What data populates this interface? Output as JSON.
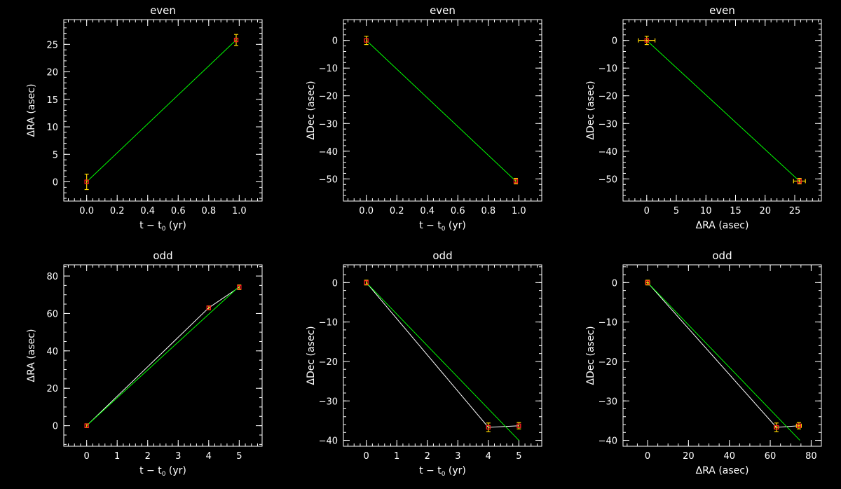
{
  "colors": {
    "background": "#000000",
    "axes": "#ffffff",
    "text": "#ffffff",
    "fit_line": "#00ff00",
    "connect_line": "#ffffff",
    "marker": "#ff2020",
    "errorbar": "#ffd700"
  },
  "chart_data": [
    {
      "type": "scatter",
      "title": "even",
      "xlabel": "t − t",
      "xlabel_sub": "0",
      "xlabel_unit": " (yr)",
      "ylabel": "ΔRA (asec)",
      "xlim": [
        -0.15,
        1.15
      ],
      "ylim": [
        -3.5,
        29.5
      ],
      "xticks": [
        0,
        0.2,
        0.4,
        0.6,
        0.8,
        1.0
      ],
      "xtick_labels": [
        "0.0",
        "0.2",
        "0.4",
        "0.6",
        "0.8",
        "1.0"
      ],
      "yticks": [
        0,
        5,
        10,
        15,
        20,
        25
      ],
      "ytick_labels": [
        "0",
        "5",
        "10",
        "15",
        "20",
        "25"
      ],
      "points": [
        {
          "x": 0,
          "y": 0,
          "yerr": 1.4
        },
        {
          "x": 0.98,
          "y": 25.8,
          "yerr": 1.0
        }
      ],
      "connect": false,
      "fit": [
        [
          0,
          0
        ],
        [
          0.98,
          25.8
        ]
      ]
    },
    {
      "type": "scatter",
      "title": "even",
      "xlabel": "t − t",
      "xlabel_sub": "0",
      "xlabel_unit": " (yr)",
      "ylabel": "ΔDec (asec)",
      "xlim": [
        -0.15,
        1.15
      ],
      "ylim": [
        -58,
        7.5
      ],
      "xticks": [
        0,
        0.2,
        0.4,
        0.6,
        0.8,
        1.0
      ],
      "xtick_labels": [
        "0.0",
        "0.2",
        "0.4",
        "0.6",
        "0.8",
        "1.0"
      ],
      "yticks": [
        0,
        -10,
        -20,
        -30,
        -40,
        -50
      ],
      "ytick_labels": [
        "0",
        "−10",
        "−20",
        "−30",
        "−40",
        "−50"
      ],
      "points": [
        {
          "x": 0,
          "y": 0,
          "yerr": 1.5
        },
        {
          "x": 0.98,
          "y": -50.8,
          "yerr": 1.0
        }
      ],
      "connect": false,
      "fit": [
        [
          0,
          0
        ],
        [
          0.98,
          -50.8
        ]
      ]
    },
    {
      "type": "scatter",
      "title": "even",
      "xlabel": "ΔRA (asec)",
      "xlabel_sub": "",
      "xlabel_unit": "",
      "ylabel": "ΔDec (asec)",
      "xlim": [
        -4,
        29.5
      ],
      "ylim": [
        -58,
        7.5
      ],
      "xticks": [
        0,
        5,
        10,
        15,
        20,
        25
      ],
      "xtick_labels": [
        "0",
        "5",
        "10",
        "15",
        "20",
        "25"
      ],
      "yticks": [
        0,
        -10,
        -20,
        -30,
        -40,
        -50
      ],
      "ytick_labels": [
        "0",
        "−10",
        "−20",
        "−30",
        "−40",
        "−50"
      ],
      "points": [
        {
          "x": 0,
          "y": 0,
          "yerr": 1.5,
          "xerr": 1.4
        },
        {
          "x": 25.8,
          "y": -50.8,
          "yerr": 1.0,
          "xerr": 1.0
        }
      ],
      "connect": false,
      "fit": [
        [
          0,
          0
        ],
        [
          25.8,
          -50.8
        ]
      ]
    },
    {
      "type": "scatter",
      "title": "odd",
      "xlabel": "t − t",
      "xlabel_sub": "0",
      "xlabel_unit": " (yr)",
      "ylabel": "ΔRA (asec)",
      "xlim": [
        -0.75,
        5.75
      ],
      "ylim": [
        -11,
        86
      ],
      "xticks": [
        0,
        1,
        2,
        3,
        4,
        5
      ],
      "xtick_labels": [
        "0",
        "1",
        "2",
        "3",
        "4",
        "5"
      ],
      "yticks": [
        0,
        20,
        40,
        60,
        80
      ],
      "ytick_labels": [
        "0",
        "20",
        "40",
        "60",
        "80"
      ],
      "points": [
        {
          "x": 0,
          "y": 0,
          "yerr": 1.0
        },
        {
          "x": 4,
          "y": 63,
          "yerr": 1.0
        },
        {
          "x": 5,
          "y": 74,
          "yerr": 1.2
        }
      ],
      "connect": true,
      "fit": [
        [
          0,
          0
        ],
        [
          5,
          74.5
        ]
      ]
    },
    {
      "type": "scatter",
      "title": "odd",
      "xlabel": "t − t",
      "xlabel_sub": "0",
      "xlabel_unit": " (yr)",
      "ylabel": "ΔDec (asec)",
      "xlim": [
        -0.75,
        5.75
      ],
      "ylim": [
        -41.5,
        4.5
      ],
      "xticks": [
        0,
        1,
        2,
        3,
        4,
        5
      ],
      "xtick_labels": [
        "0",
        "1",
        "2",
        "3",
        "4",
        "5"
      ],
      "yticks": [
        0,
        -10,
        -20,
        -30,
        -40
      ],
      "ytick_labels": [
        "0",
        "−10",
        "−20",
        "−30",
        "−40"
      ],
      "points": [
        {
          "x": 0,
          "y": 0,
          "yerr": 0.6
        },
        {
          "x": 4,
          "y": -36.7,
          "yerr": 1.1
        },
        {
          "x": 5,
          "y": -36.3,
          "yerr": 0.8
        }
      ],
      "connect": true,
      "fit": [
        [
          0,
          0
        ],
        [
          5,
          -40
        ]
      ]
    },
    {
      "type": "scatter",
      "title": "odd",
      "xlabel": "ΔRA (asec)",
      "xlabel_sub": "",
      "xlabel_unit": "",
      "ylabel": "ΔDec (asec)",
      "xlim": [
        -12,
        85
      ],
      "ylim": [
        -41.5,
        4.5
      ],
      "xticks": [
        0,
        20,
        40,
        60,
        80
      ],
      "xtick_labels": [
        "0",
        "20",
        "40",
        "60",
        "80"
      ],
      "yticks": [
        0,
        -10,
        -20,
        -30,
        -40
      ],
      "ytick_labels": [
        "0",
        "−10",
        "−20",
        "−30",
        "−40"
      ],
      "points": [
        {
          "x": 0,
          "y": 0,
          "yerr": 0.6,
          "xerr": 1.0
        },
        {
          "x": 63,
          "y": -36.7,
          "yerr": 1.1,
          "xerr": 1.0
        },
        {
          "x": 74,
          "y": -36.3,
          "yerr": 0.8,
          "xerr": 1.2
        }
      ],
      "connect": true,
      "fit": [
        [
          0,
          0
        ],
        [
          74.5,
          -40
        ]
      ]
    }
  ]
}
